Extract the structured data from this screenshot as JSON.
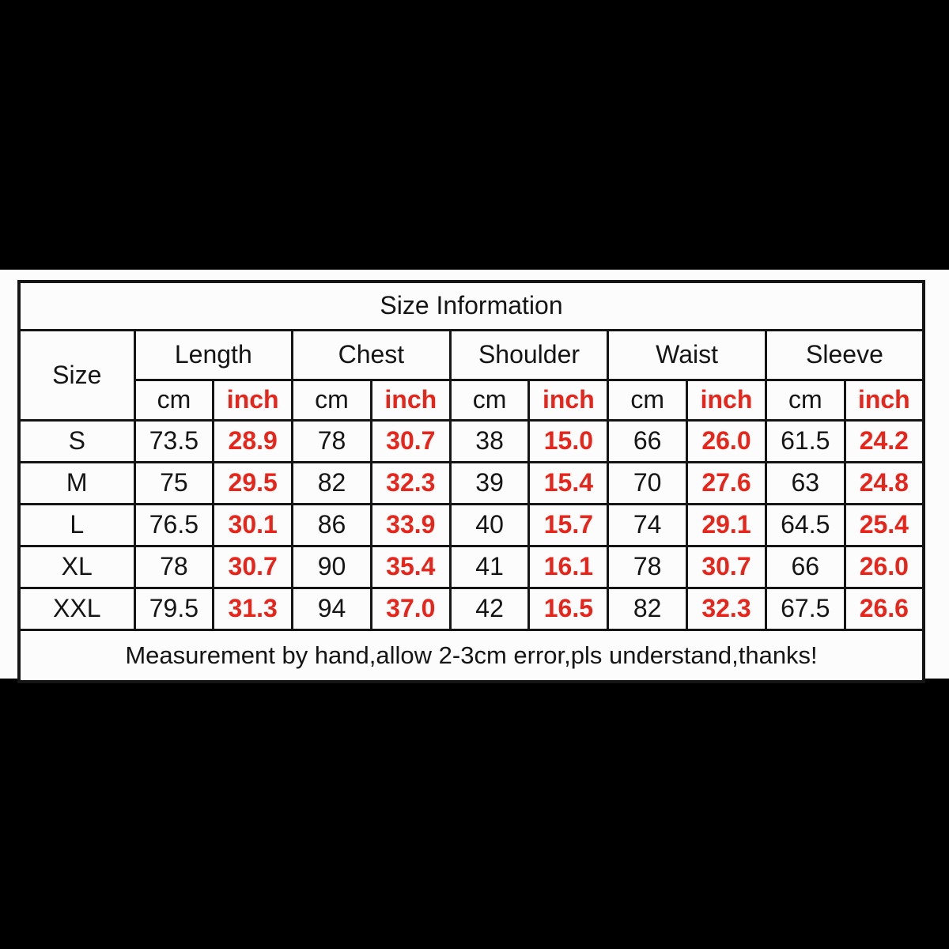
{
  "colors": {
    "page_bg": "#000000",
    "panel_bg": "#fcfcfc",
    "border": "#151515",
    "text": "#151515",
    "inch": "#e8251a"
  },
  "chart_data": {
    "type": "table",
    "title": "Size Information",
    "corner_header": "Size",
    "group_headers": [
      "Length",
      "Chest",
      "Shoulder",
      "Waist",
      "Sleeve"
    ],
    "unit_headers": {
      "cm": "cm",
      "inch": "inch"
    },
    "rows": [
      {
        "size": "S",
        "values": [
          "73.5",
          "28.9",
          "78",
          "30.7",
          "38",
          "15.0",
          "66",
          "26.0",
          "61.5",
          "24.2"
        ]
      },
      {
        "size": "M",
        "values": [
          "75",
          "29.5",
          "82",
          "32.3",
          "39",
          "15.4",
          "70",
          "27.6",
          "63",
          "24.8"
        ]
      },
      {
        "size": "L",
        "values": [
          "76.5",
          "30.1",
          "86",
          "33.9",
          "40",
          "15.7",
          "74",
          "29.1",
          "64.5",
          "25.4"
        ]
      },
      {
        "size": "XL",
        "values": [
          "78",
          "30.7",
          "90",
          "35.4",
          "41",
          "16.1",
          "78",
          "30.7",
          "66",
          "26.0"
        ]
      },
      {
        "size": "XXL",
        "values": [
          "79.5",
          "31.3",
          "94",
          "37.0",
          "42",
          "16.5",
          "82",
          "32.3",
          "67.5",
          "26.6"
        ]
      }
    ],
    "note": "Measurement by hand,allow 2-3cm error,pls understand,thanks!",
    "layout_hints": {
      "measurements_order": [
        "Length cm",
        "Length inch",
        "Chest cm",
        "Chest inch",
        "Shoulder cm",
        "Shoulder inch",
        "Waist cm",
        "Waist inch",
        "Sleeve cm",
        "Sleeve inch"
      ]
    }
  }
}
